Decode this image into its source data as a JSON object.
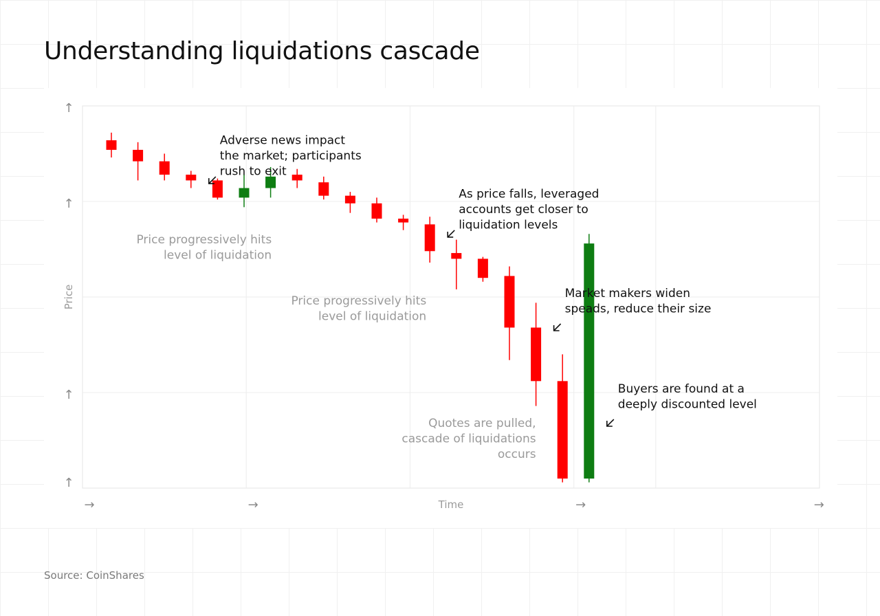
{
  "page": {
    "title": "Understanding liquidations cascade",
    "source": "Source: CoinShares"
  },
  "chart_data": {
    "type": "candlestick",
    "title": "Understanding liquidations cascade",
    "xlabel": "Time",
    "ylabel": "Price",
    "x_ticks": [
      "→",
      "→",
      "→",
      "→"
    ],
    "y_ticks": [
      "↑",
      "↑",
      "↑",
      "↑"
    ],
    "ylim": [
      0,
      100
    ],
    "grid": true,
    "legend": "none",
    "colors": {
      "up": "#0e7d12",
      "down": "#ff0000",
      "annotation": "#111111",
      "muted_annotation": "#9a9a9a"
    },
    "candles": [
      {
        "open": 91,
        "close": 88.5,
        "high": 93,
        "low": 86.5
      },
      {
        "open": 88.5,
        "close": 85.5,
        "high": 90.5,
        "low": 80.5
      },
      {
        "open": 85.5,
        "close": 82,
        "high": 87.5,
        "low": 80.5
      },
      {
        "open": 82,
        "close": 80.5,
        "high": 83,
        "low": 78.5
      },
      {
        "open": 80.5,
        "close": 76,
        "high": 81,
        "low": 75.5
      },
      {
        "open": 76,
        "close": 78.5,
        "high": 82,
        "low": 73.5
      },
      {
        "open": 78.5,
        "close": 81.5,
        "high": 84,
        "low": 76
      },
      {
        "open": 82,
        "close": 80.5,
        "high": 83.5,
        "low": 78.5
      },
      {
        "open": 80,
        "close": 76.5,
        "high": 81.5,
        "low": 75.5
      },
      {
        "open": 76.5,
        "close": 74.5,
        "high": 77.5,
        "low": 72
      },
      {
        "open": 74.5,
        "close": 70.5,
        "high": 76,
        "low": 69.5
      },
      {
        "open": 70.5,
        "close": 69.5,
        "high": 71.5,
        "low": 67.5
      },
      {
        "open": 69,
        "close": 62,
        "high": 71,
        "low": 59
      },
      {
        "open": 61.5,
        "close": 60,
        "high": 65,
        "low": 52
      },
      {
        "open": 60,
        "close": 55,
        "high": 60.5,
        "low": 54
      },
      {
        "open": 55.5,
        "close": 42,
        "high": 58,
        "low": 33.5
      },
      {
        "open": 42,
        "close": 28,
        "high": 48.5,
        "low": 21.5
      },
      {
        "open": 28,
        "close": 2.5,
        "high": 35,
        "low": 1.5
      },
      {
        "open": 2.5,
        "close": 64,
        "high": 66.5,
        "low": 1.5
      }
    ],
    "annotations": [
      {
        "lines": [
          "Adverse news impact",
          "the market; participants",
          "rush to exit"
        ],
        "style": "dark",
        "align": "left",
        "near_candle": 3,
        "value": 90
      },
      {
        "lines": [
          "As price falls, leveraged",
          "accounts get closer to",
          "liquidation levels"
        ],
        "style": "dark",
        "align": "left",
        "near_candle": 12,
        "value": 76
      },
      {
        "lines": [
          "Market makers widen",
          "speads, reduce their size"
        ],
        "style": "dark",
        "align": "left",
        "near_candle": 16,
        "value": 50
      },
      {
        "lines": [
          "Buyers are found at a",
          "deeply discounted level"
        ],
        "style": "dark",
        "align": "left",
        "near_candle": 18,
        "value": 25
      },
      {
        "lines": [
          "Price progressively hits",
          "level of liquidation"
        ],
        "style": "muted",
        "align": "right",
        "near_candle": 7,
        "value": 64
      },
      {
        "lines": [
          "Price progressively hits",
          "level of liquidation"
        ],
        "style": "muted",
        "align": "right",
        "near_candle": 12,
        "value": 48
      },
      {
        "lines": [
          "Quotes are pulled,",
          "cascade of liquidations",
          "occurs"
        ],
        "style": "muted",
        "align": "right",
        "near_candle": 16,
        "value": 16
      }
    ]
  }
}
